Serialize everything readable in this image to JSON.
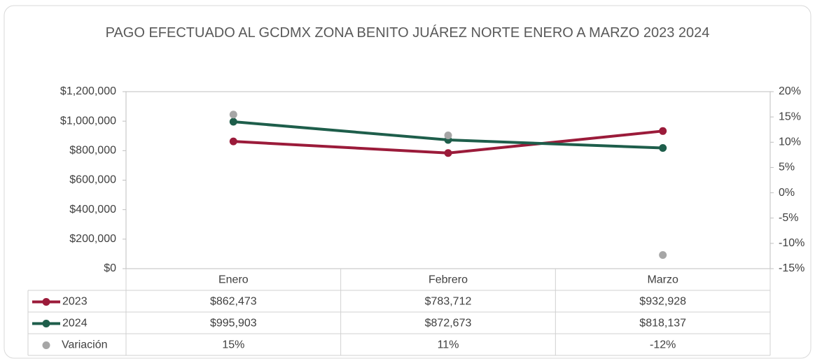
{
  "chart_data": {
    "type": "line",
    "title": "PAGO EFECTUADO AL GCDMX ZONA BENITO JUÁREZ NORTE ENERO A MARZO 2023 2024",
    "categories": [
      "Enero",
      "Febrero",
      "Marzo"
    ],
    "series": [
      {
        "name": "2023",
        "color": "#9b1b3a",
        "values": [
          862473,
          783712,
          932928
        ],
        "value_labels": [
          "$862,473",
          "$783,712",
          "$932,928"
        ]
      },
      {
        "name": "2024",
        "color": "#1e5e4b",
        "values": [
          995903,
          872673,
          818137
        ],
        "value_labels": [
          "$995,903",
          "$872,673",
          "$818,137"
        ]
      },
      {
        "name": "Variación",
        "color": "#a6a6a6",
        "axis": "y2",
        "marker_only": true,
        "values": [
          15.47,
          11.35,
          -12.3
        ],
        "value_labels": [
          "15%",
          "11%",
          "-12%"
        ]
      }
    ],
    "ylim": [
      0,
      1200000
    ],
    "yticks": [
      {
        "value": 0,
        "label": "$0"
      },
      {
        "value": 200000,
        "label": "$200,000"
      },
      {
        "value": 400000,
        "label": "$400,000"
      },
      {
        "value": 600000,
        "label": "$600,000"
      },
      {
        "value": 800000,
        "label": "$800,000"
      },
      {
        "value": 1000000,
        "label": "$1,000,000"
      },
      {
        "value": 1200000,
        "label": "$1,200,000"
      }
    ],
    "y2lim": [
      -15,
      20
    ],
    "y2ticks": [
      {
        "value": -15,
        "label": "-15%"
      },
      {
        "value": -10,
        "label": "-10%"
      },
      {
        "value": -5,
        "label": "-5%"
      },
      {
        "value": 0,
        "label": "0%"
      },
      {
        "value": 5,
        "label": "5%"
      },
      {
        "value": 10,
        "label": "10%"
      },
      {
        "value": 15,
        "label": "15%"
      },
      {
        "value": 20,
        "label": "20%"
      }
    ],
    "grid": false,
    "data_table": true
  }
}
